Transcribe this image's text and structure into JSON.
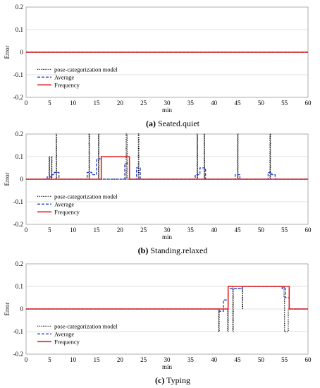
{
  "colors": {
    "model": "#000000",
    "average": "#1f3ccc",
    "frequency": "#e02020",
    "grid": "#d9d9d9"
  },
  "chart_data": [
    {
      "type": "line",
      "caption_label": "(a)",
      "caption_text": " Seated.quiet",
      "xlabel": "min",
      "ylabel": "Error",
      "xlim": [
        0,
        60
      ],
      "ylim": [
        -0.2,
        0.2
      ],
      "xticks": [
        "0",
        "5",
        "10",
        "15",
        "20",
        "25",
        "30",
        "35",
        "40",
        "45",
        "50",
        "55",
        "60"
      ],
      "yticks": [
        "0.2",
        "0.1",
        "0",
        "-0.1",
        "-0.2"
      ],
      "legend_position": "bottom-left",
      "series": [
        {
          "name": "pose-categorization model",
          "style": "dotted",
          "x": [
            0,
            60
          ],
          "y": [
            0,
            0
          ]
        },
        {
          "name": "Average",
          "style": "dashed",
          "x": [
            0,
            60
          ],
          "y": [
            0,
            0
          ]
        },
        {
          "name": "Frequency",
          "style": "solid",
          "x": [
            0,
            60
          ],
          "y": [
            0,
            0
          ]
        }
      ]
    },
    {
      "type": "line",
      "caption_label": "(b)",
      "caption_text": " Standing.relaxed",
      "xlabel": "min",
      "ylabel": "Error",
      "xlim": [
        0,
        60
      ],
      "ylim": [
        -0.2,
        0.2
      ],
      "xticks": [
        "0",
        "5",
        "10",
        "15",
        "20",
        "25",
        "30",
        "35",
        "40",
        "45",
        "50",
        "55",
        "60"
      ],
      "yticks": [
        "0.2",
        "0.1",
        "0",
        "-0.1",
        "-0.2"
      ],
      "legend_position": "bottom-left",
      "series": [
        {
          "name": "pose-categorization model",
          "style": "dotted",
          "x": [
            0,
            4.9,
            4.9,
            5.0,
            5.0,
            5.4,
            5.4,
            5.5,
            5.5,
            6.4,
            6.4,
            6.5,
            6.5,
            13.4,
            13.4,
            13.5,
            13.5,
            15.4,
            15.4,
            15.5,
            15.5,
            21.3,
            21.3,
            21.5,
            21.5,
            23.9,
            23.9,
            24.0,
            24.0,
            36.4,
            36.4,
            36.5,
            36.5,
            37.9,
            37.9,
            38.0,
            38.0,
            45.0,
            45.0,
            45.1,
            45.1,
            51.9,
            51.9,
            52.0,
            52.0,
            60
          ],
          "y": [
            0,
            0,
            0.1,
            0.1,
            0,
            0,
            0.1,
            0.1,
            0,
            0,
            0.2,
            0.2,
            0,
            0,
            0.2,
            0.2,
            0,
            0,
            0.2,
            0.2,
            0,
            0,
            0.2,
            0.2,
            0,
            0,
            0.2,
            0.2,
            0,
            0,
            0.2,
            0.2,
            0,
            0,
            0.2,
            0.2,
            0,
            0,
            0.2,
            0.2,
            0,
            0,
            0.2,
            0.2,
            0,
            0
          ]
        },
        {
          "name": "Average",
          "style": "dashed",
          "x": [
            0,
            4.5,
            4.5,
            5.3,
            5.3,
            6.0,
            6.0,
            7.0,
            7.0,
            13.0,
            13.0,
            14.0,
            14.0,
            15.0,
            15.0,
            16.0,
            16.0,
            21.0,
            21.0,
            22.0,
            22.0,
            23.5,
            23.5,
            24.3,
            24.3,
            36.0,
            36.0,
            37.0,
            37.0,
            38.2,
            38.2,
            44.5,
            44.5,
            45.5,
            45.5,
            51.5,
            51.5,
            52.3,
            52.3,
            53.0,
            53.0,
            60
          ],
          "y": [
            0,
            0,
            0.01,
            0.01,
            0.02,
            0.02,
            0.03,
            0.03,
            0,
            0,
            0.03,
            0.03,
            0.02,
            0.02,
            0.09,
            0.09,
            0,
            0,
            0.07,
            0.07,
            0,
            0,
            0.05,
            0.05,
            0,
            0,
            0.02,
            0.02,
            0.05,
            0.05,
            0,
            0,
            0.02,
            0.02,
            0,
            0,
            0.03,
            0.03,
            0.02,
            0.02,
            0,
            0
          ]
        },
        {
          "name": "Frequency",
          "style": "solid",
          "x": [
            0,
            16.0,
            16.0,
            22.0,
            22.0,
            60
          ],
          "y": [
            0,
            0,
            0.1,
            0.1,
            0,
            0
          ]
        }
      ]
    },
    {
      "type": "line",
      "caption_label": "(c)",
      "caption_text": " Typing",
      "xlabel": "min",
      "ylabel": "Error",
      "xlim": [
        0,
        60
      ],
      "ylim": [
        -0.2,
        0.2
      ],
      "xticks": [
        "0",
        "5",
        "10",
        "15",
        "20",
        "25",
        "30",
        "35",
        "40",
        "45",
        "50",
        "55",
        "60"
      ],
      "yticks": [
        "0.2",
        "0.1",
        "0",
        "-0.1",
        "-0.2"
      ],
      "legend_position": "bottom-left",
      "series": [
        {
          "name": "pose-categorization model",
          "style": "dotted",
          "x": [
            0,
            41.0,
            41.0,
            41.1,
            41.1,
            42.9,
            42.9,
            43.0,
            43.0,
            44.0,
            44.0,
            44.1,
            44.1,
            46.0,
            46.0,
            46.1,
            46.1,
            54.9,
            54.9,
            55.0,
            55.0,
            55.8,
            55.8,
            55.9,
            55.9,
            60
          ],
          "y": [
            0,
            0,
            -0.1,
            -0.1,
            0,
            0,
            -0.1,
            -0.1,
            0.1,
            0.1,
            -0.1,
            -0.1,
            0.09,
            0.09,
            0,
            0,
            0.1,
            0.1,
            0.05,
            0.05,
            -0.1,
            -0.1,
            0,
            0,
            0,
            0
          ]
        },
        {
          "name": "Average",
          "style": "dashed",
          "x": [
            0,
            41.0,
            41.0,
            42.0,
            42.0,
            43.0,
            43.0,
            44.0,
            44.0,
            46.0,
            46.0,
            54.5,
            54.5,
            55.2,
            55.2,
            56.0,
            56.0,
            60
          ],
          "y": [
            0,
            0,
            -0.01,
            -0.01,
            0.04,
            0.04,
            0.09,
            0.09,
            0.09,
            0.09,
            0.1,
            0.1,
            0.09,
            0.09,
            0.05,
            0.05,
            0,
            0
          ]
        },
        {
          "name": "Frequency",
          "style": "solid",
          "x": [
            0,
            43.0,
            43.0,
            56.0,
            56.0,
            60
          ],
          "y": [
            0,
            0,
            0.1,
            0.1,
            0,
            0
          ]
        }
      ]
    }
  ]
}
